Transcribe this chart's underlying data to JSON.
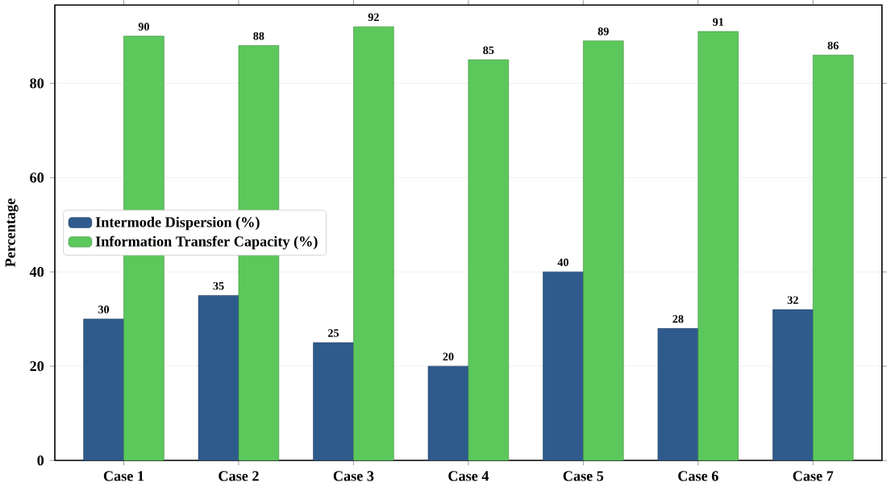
{
  "chart_data": {
    "type": "bar",
    "ylabel": "Percentage",
    "categories": [
      "Case 1",
      "Case 2",
      "Case 3",
      "Case 4",
      "Case 5",
      "Case 6",
      "Case 7"
    ],
    "series": [
      {
        "name": "Intermode Dispersion (%)",
        "color": "#2f5b8c",
        "values": [
          30,
          35,
          25,
          20,
          40,
          28,
          32
        ]
      },
      {
        "name": "Information Transfer Capacity (%)",
        "color": "#5cc85c",
        "values": [
          90,
          88,
          92,
          85,
          89,
          91,
          86
        ]
      }
    ],
    "ylim": [
      0,
      96.6
    ],
    "yticks": [
      0,
      20,
      40,
      60,
      80
    ],
    "grid": "y",
    "legend": "left",
    "data_labels": true
  }
}
